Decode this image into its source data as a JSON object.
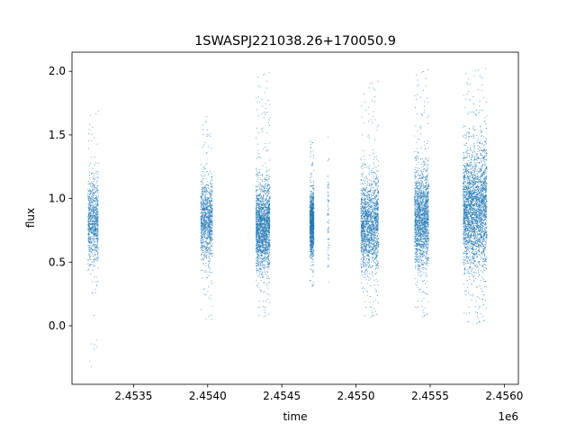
{
  "chart_data": {
    "type": "scatter",
    "title": "1SWASPJ221038.26+170050.9",
    "xlabel": "time",
    "ylabel": "flux",
    "x_offset_label": "1e6",
    "x_tick_labels": [
      "2.4535",
      "2.4540",
      "2.4545",
      "2.4550",
      "2.4555",
      "2.4560"
    ],
    "x_ticks": [
      2453500,
      2454000,
      2454500,
      2455000,
      2455500,
      2456000
    ],
    "y_tick_labels": [
      "0.0",
      "0.5",
      "1.0",
      "1.5",
      "2.0"
    ],
    "y_ticks": [
      0.0,
      0.5,
      1.0,
      1.5,
      2.0
    ],
    "xlim": [
      2453085,
      2456095
    ],
    "ylim": [
      -0.46,
      2.15
    ],
    "grid": false,
    "marker_color": "#1f77b4",
    "clusters": [
      {
        "x_center": 2453225,
        "x_width": 70,
        "y_median": 0.82,
        "y_spread": 0.3,
        "y_min": -0.35,
        "y_max": 1.72,
        "density": 1.0
      },
      {
        "x_center": 2453990,
        "x_width": 80,
        "y_median": 0.83,
        "y_spread": 0.28,
        "y_min": 0.05,
        "y_max": 1.65,
        "density": 1.2
      },
      {
        "x_center": 2454370,
        "x_width": 95,
        "y_median": 0.78,
        "y_spread": 0.3,
        "y_min": 0.05,
        "y_max": 2.0,
        "density": 2.2
      },
      {
        "x_center": 2454700,
        "x_width": 28,
        "y_median": 0.8,
        "y_spread": 0.22,
        "y_min": 0.3,
        "y_max": 1.48,
        "density": 1.2
      },
      {
        "x_center": 2454810,
        "x_width": 10,
        "y_median": 0.85,
        "y_spread": 0.35,
        "y_min": 0.15,
        "y_max": 2.02,
        "density": 0.08
      },
      {
        "x_center": 2455090,
        "x_width": 120,
        "y_median": 0.8,
        "y_spread": 0.33,
        "y_min": 0.05,
        "y_max": 1.93,
        "density": 2.0
      },
      {
        "x_center": 2455440,
        "x_width": 95,
        "y_median": 0.85,
        "y_spread": 0.34,
        "y_min": 0.05,
        "y_max": 2.02,
        "density": 2.0
      },
      {
        "x_center": 2455800,
        "x_width": 160,
        "y_median": 0.92,
        "y_spread": 0.42,
        "y_min": 0.0,
        "y_max": 2.03,
        "density": 3.5
      }
    ]
  }
}
